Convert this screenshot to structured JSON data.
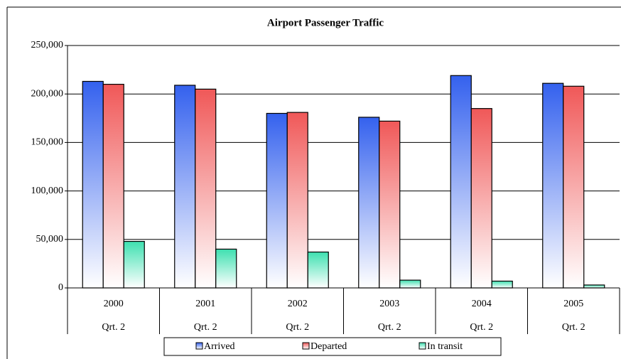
{
  "chart_data": {
    "type": "bar",
    "title": "Airport Passenger Traffic",
    "categories": [
      "2000",
      "2001",
      "2002",
      "2003",
      "2004",
      "2005"
    ],
    "subcategories": [
      "Qrt. 2",
      "Qrt. 2",
      "Qrt. 2",
      "Qrt. 2",
      "Qrt. 2",
      "Qrt. 2"
    ],
    "series": [
      {
        "name": "Arrived",
        "color": "#3461ee",
        "values": [
          213000,
          209000,
          180000,
          176000,
          219000,
          211000
        ]
      },
      {
        "name": "Departed",
        "color": "#f05858",
        "values": [
          210000,
          205000,
          181000,
          172000,
          185000,
          208000
        ]
      },
      {
        "name": "In transit",
        "color": "#3ee0b0",
        "values": [
          48000,
          40000,
          37000,
          8000,
          7000,
          3000
        ]
      }
    ],
    "ylim": [
      0,
      250000
    ],
    "yticks": [
      0,
      {
        "value": 50000,
        "label": "50,000"
      },
      {
        "value": 100000,
        "label": "100,000"
      },
      {
        "value": 150000,
        "label": "150,000"
      },
      {
        "value": 200000,
        "label": "200,000"
      },
      {
        "value": 250000,
        "label": "250,000"
      }
    ],
    "grid": true
  }
}
